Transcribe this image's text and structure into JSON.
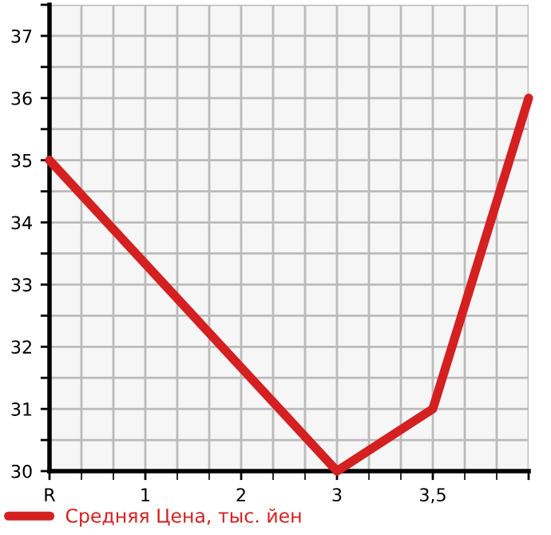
{
  "chart_data": {
    "type": "line",
    "categories": [
      "R",
      "1",
      "2",
      "3",
      "3,5",
      null
    ],
    "series": [
      {
        "name": "Средняя Цена, тыс. йен",
        "color": "#d42020",
        "values": [
          35,
          null,
          null,
          30,
          31,
          36
        ]
      }
    ],
    "ylim": [
      30,
      37.5
    ],
    "yticks": [
      30,
      {
        "value": 30.5,
        "label": null
      },
      31,
      {
        "value": 31.5,
        "label": null
      },
      32,
      {
        "value": 32.5,
        "label": null
      },
      33,
      {
        "value": 33.5,
        "label": null
      },
      34,
      {
        "value": 34.5,
        "label": null
      },
      35,
      {
        "value": 35.5,
        "label": null
      },
      36,
      {
        "value": 36.5,
        "label": null
      },
      37,
      {
        "value": 37.5,
        "label": null
      }
    ],
    "grid": true,
    "legend": "bottom left",
    "marker": "none",
    "line_style": "solid"
  }
}
